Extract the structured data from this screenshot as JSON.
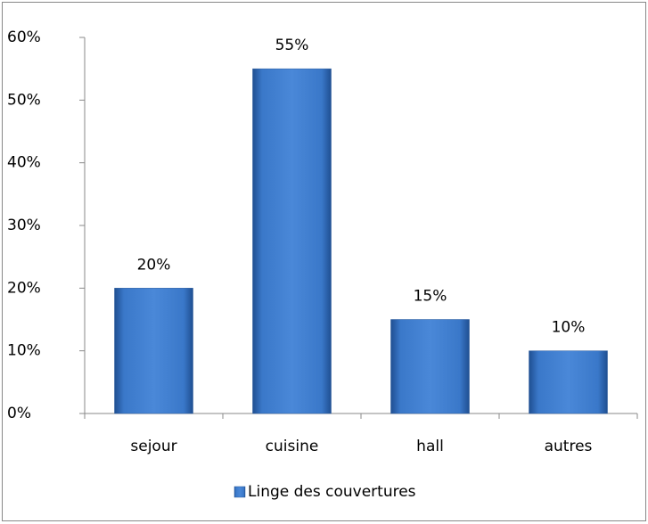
{
  "chart_data": {
    "type": "bar",
    "categories": [
      "sejour",
      "cuisine",
      "hall",
      "autres"
    ],
    "series": [
      {
        "name": "Linge des couvertures",
        "color": "#3a78c9",
        "values": [
          20,
          55,
          15,
          10
        ],
        "value_labels": [
          "20%",
          "55%",
          "15%",
          "10%"
        ]
      }
    ],
    "ylim": [
      0,
      60
    ],
    "yticks": [
      {
        "value": 0,
        "label": "0%"
      },
      {
        "value": 10,
        "label": "10%"
      },
      {
        "value": 20,
        "label": "20%"
      },
      {
        "value": 30,
        "label": "30%"
      },
      {
        "value": 40,
        "label": "40%"
      },
      {
        "value": 50,
        "label": "50%"
      },
      {
        "value": 60,
        "label": "60%"
      }
    ],
    "legend": "bottom"
  }
}
